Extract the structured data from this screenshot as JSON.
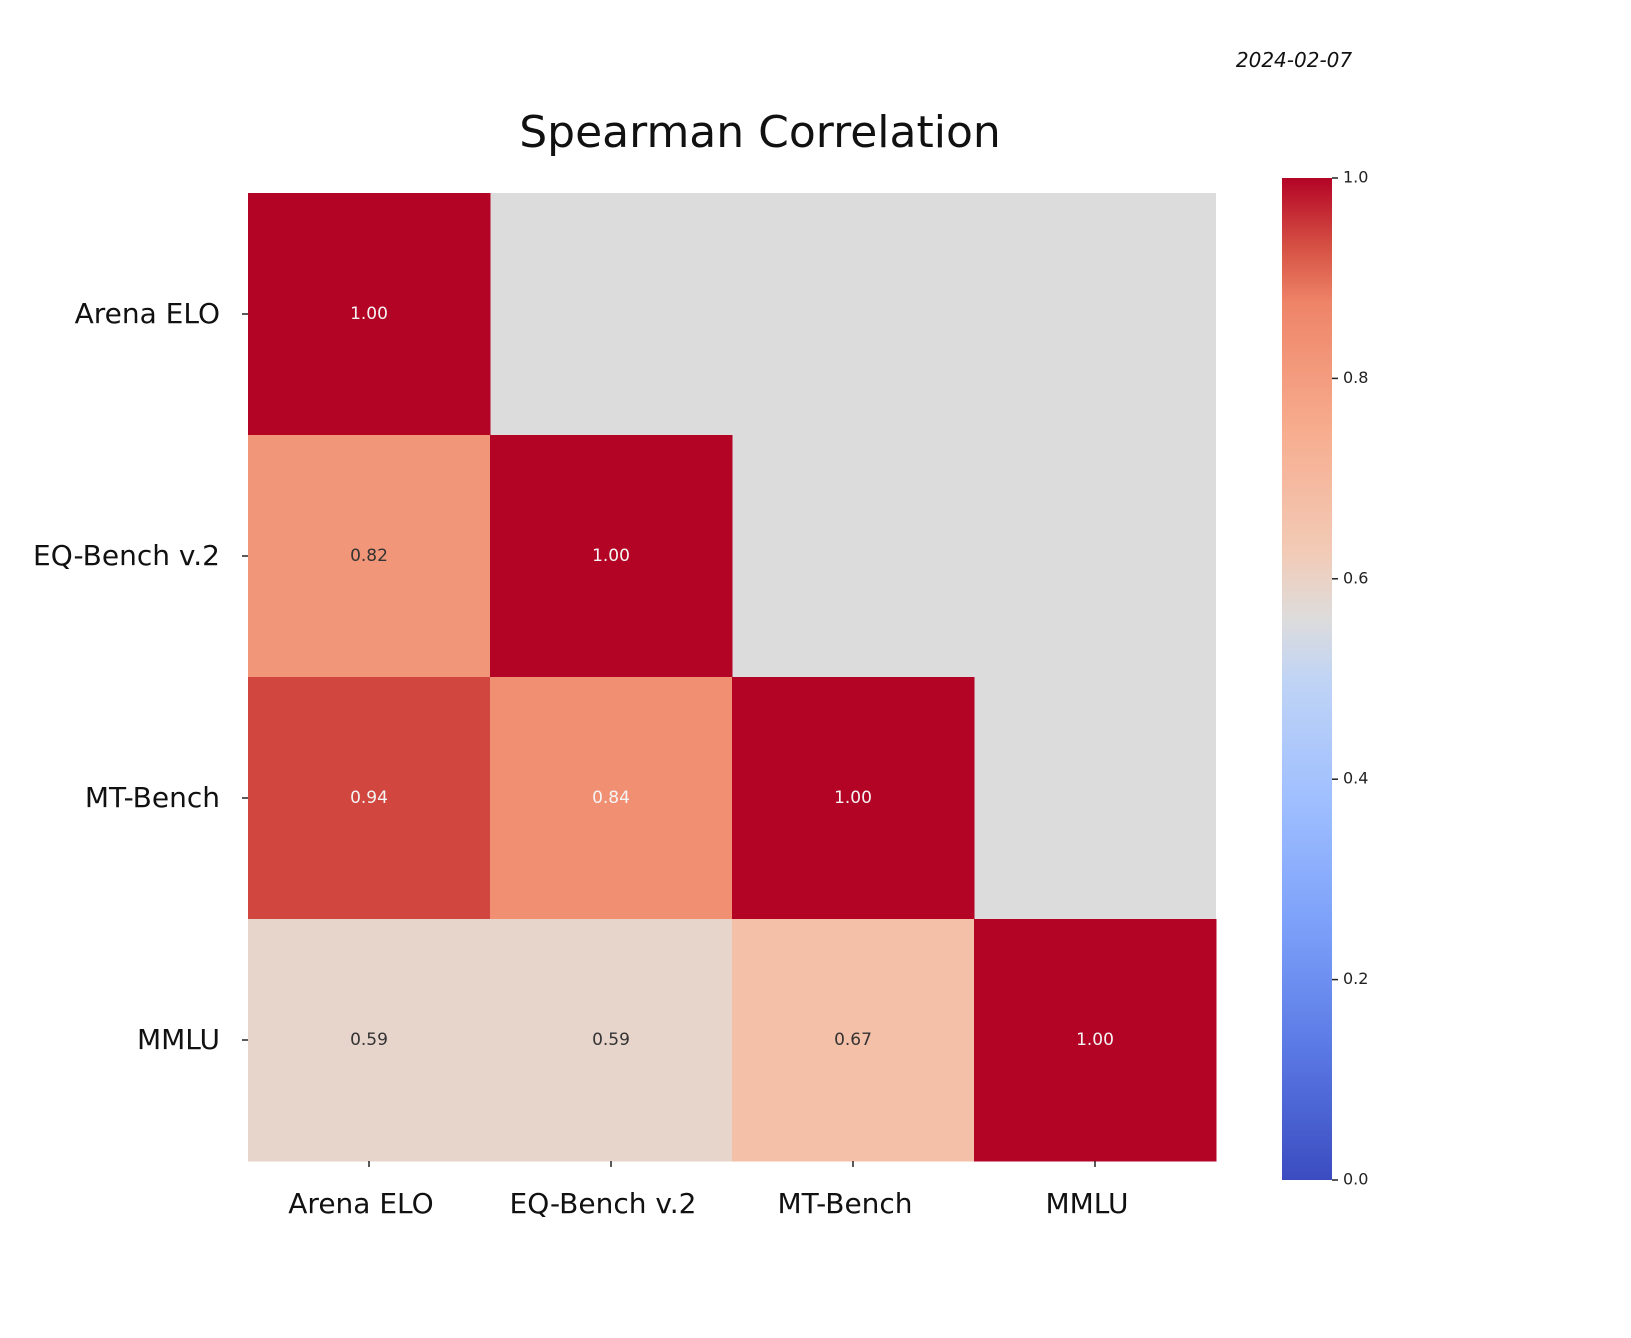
{
  "date_stamp": "2024-02-07",
  "chart_data": {
    "type": "heatmap",
    "title": "Spearman Correlation",
    "row_labels": [
      "Arena ELO",
      "EQ-Bench v.2",
      "MT-Bench",
      "MMLU"
    ],
    "col_labels": [
      "Arena ELO",
      "EQ-Bench v.2",
      "MT-Bench",
      "MMLU"
    ],
    "values": [
      [
        1.0,
        null,
        null,
        null
      ],
      [
        0.82,
        1.0,
        null,
        null
      ],
      [
        0.94,
        0.84,
        1.0,
        null
      ],
      [
        0.59,
        0.59,
        0.67,
        1.0
      ]
    ],
    "value_labels": [
      [
        "1.00",
        null,
        null,
        null
      ],
      [
        "0.82",
        "1.00",
        null,
        null
      ],
      [
        "0.94",
        "0.84",
        "1.00",
        null
      ],
      [
        "0.59",
        "0.59",
        "0.67",
        "1.00"
      ]
    ],
    "masked": "upper-triangle",
    "mask_color": "#dcdcdc",
    "colormap": "coolwarm",
    "colorbar": {
      "range": [
        0.0,
        1.0
      ],
      "ticks": [
        "0.0",
        "0.2",
        "0.4",
        "0.6",
        "0.8",
        "1.0"
      ]
    }
  }
}
